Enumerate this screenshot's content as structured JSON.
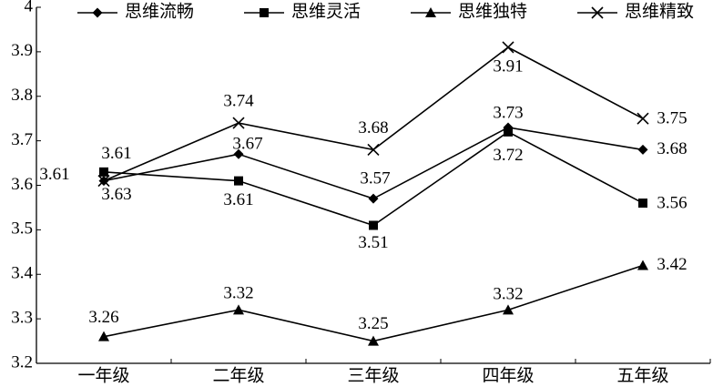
{
  "chart_data": {
    "type": "line",
    "categories": [
      "一年级",
      "二年级",
      "三年级",
      "四年级",
      "五年级"
    ],
    "series": [
      {
        "name": "思维流畅",
        "color": "#000000",
        "marker": "diamond",
        "values": [
          3.61,
          3.67,
          3.57,
          3.73,
          3.68
        ]
      },
      {
        "name": "思维灵活",
        "color": "#000000",
        "marker": "square",
        "values": [
          3.63,
          3.61,
          3.51,
          3.72,
          3.56
        ]
      },
      {
        "name": "思维独特",
        "color": "#000000",
        "marker": "triangle",
        "values": [
          3.26,
          3.32,
          3.25,
          3.32,
          3.42
        ]
      },
      {
        "name": "思维精致",
        "color": "#000000",
        "marker": "x",
        "values": [
          3.61,
          3.74,
          3.68,
          3.91,
          3.75
        ]
      }
    ],
    "ylim": [
      3.2,
      4
    ],
    "yticks": [
      3.2,
      3.3,
      3.4,
      3.5,
      3.6,
      3.7,
      3.8,
      3.9,
      4
    ],
    "grid": false,
    "legend": "top"
  }
}
